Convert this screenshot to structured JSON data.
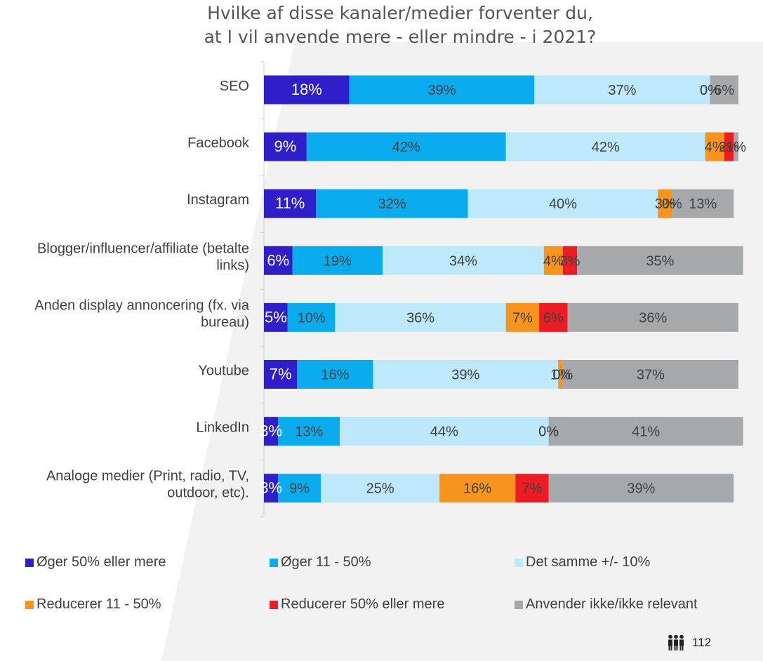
{
  "chart_data": {
    "type": "bar",
    "orientation": "horizontal",
    "stacked": true,
    "percent_stacked": true,
    "title": "Hvilke af disse kanaler/medier forventer du, at I vil anvende mere - eller mindre - i 2021?",
    "title_lines": [
      "Hvilke af disse kanaler/medier forventer du,",
      "at I vil anvende mere - eller mindre - i 2021?"
    ],
    "categories": [
      [
        "SEO"
      ],
      [
        "Facebook"
      ],
      [
        "Instagram"
      ],
      [
        "Blogger/influencer/affiliate (betalte",
        "links)"
      ],
      [
        "Anden display annoncering (fx. via",
        "bureau)"
      ],
      [
        "Youtube"
      ],
      [
        "LinkedIn"
      ],
      [
        "Analoge medier (Print, radio, TV,",
        "outdoor, etc)."
      ]
    ],
    "series": [
      {
        "name": "Øger 50% eller mere",
        "color": "#2e1fc8",
        "label_color": "#ffffff",
        "values": [
          18,
          9,
          11,
          6,
          5,
          7,
          3,
          3
        ]
      },
      {
        "name": "Øger 11 - 50%",
        "color": "#0aaced",
        "label_color": "#404040",
        "values": [
          39,
          42,
          32,
          19,
          10,
          16,
          13,
          9
        ]
      },
      {
        "name": "Det samme +/- 10%",
        "color": "#bde9fb",
        "label_color": "#404040",
        "values": [
          37,
          42,
          40,
          34,
          36,
          39,
          44,
          25
        ]
      },
      {
        "name": "Reducerer 11 - 50%",
        "color": "#f7941d",
        "label_color": "#404040",
        "values": [
          0,
          4,
          3,
          4,
          7,
          1,
          0,
          16
        ]
      },
      {
        "name": "Reducerer 50% eller mere",
        "color": "#ec1c24",
        "label_color": "#404040",
        "values": [
          0,
          2,
          0,
          3,
          6,
          0,
          0,
          7
        ]
      },
      {
        "name": "Anvender ikke/ikke relevant",
        "color": "#a6a9ab",
        "label_color": "#404040",
        "values": [
          6,
          1,
          13,
          35,
          36,
          37,
          41,
          39
        ]
      }
    ],
    "xlim": [
      0,
      100
    ],
    "grid": false,
    "legend_position": "bottom"
  },
  "footer": {
    "icon": "people-icon",
    "page_number": "112"
  }
}
